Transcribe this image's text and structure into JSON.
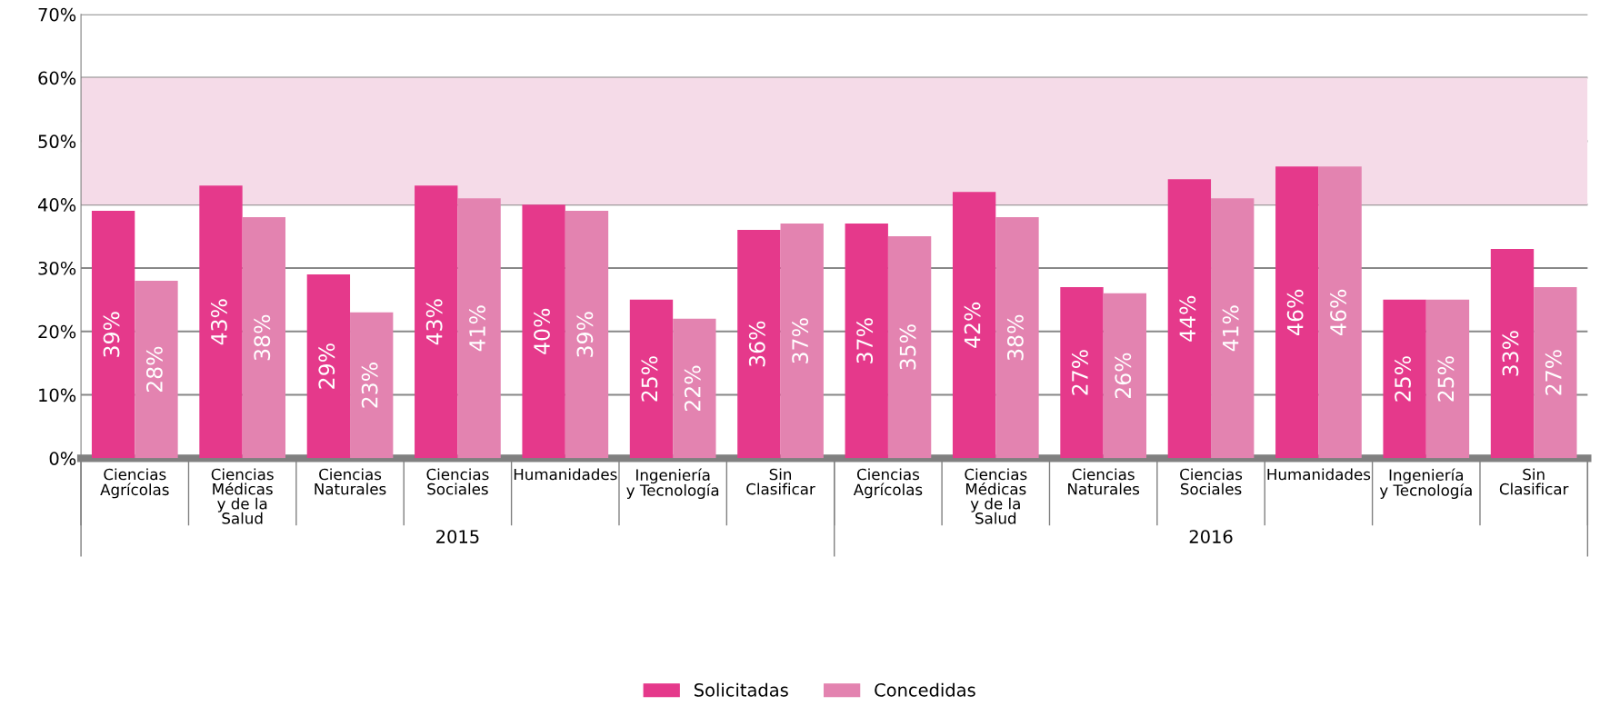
{
  "chart_data": {
    "type": "bar",
    "categories": [
      "Ciencias\nAgrícolas",
      "Ciencias\nMédicas\ny de la\nSalud",
      "Ciencias\nNaturales",
      "Ciencias\nSociales",
      "Humanidades",
      "Ingeniería\ny Tecnología",
      "Sin\nClasificar",
      "Ciencias\nAgrícolas",
      "Ciencias\nMédicas\ny de la\nSalud",
      "Ciencias\nNaturales",
      "Ciencias\nSociales",
      "Humanidades",
      "Ingeniería\ny Tecnología",
      "Sin\nClasificar"
    ],
    "series": [
      {
        "name": "Solicitadas",
        "color": "#e5398b",
        "values": [
          39,
          43,
          29,
          43,
          40,
          25,
          36,
          37,
          42,
          27,
          44,
          46,
          25,
          33
        ],
        "value_labels": [
          "39%",
          "43%",
          "29%",
          "43%",
          "40%",
          "25%",
          "36%",
          "37%",
          "42%",
          "27%",
          "44%",
          "46%",
          "25%",
          "33%"
        ]
      },
      {
        "name": "Concedidas",
        "color": "#e383b0",
        "values": [
          28,
          38,
          23,
          41,
          39,
          22,
          37,
          35,
          38,
          26,
          41,
          46,
          25,
          27
        ],
        "value_labels": [
          "28%",
          "38%",
          "23%",
          "41%",
          "39%",
          "22%",
          "37%",
          "35%",
          "38%",
          "26%",
          "41%",
          "46%",
          "25%",
          "27%"
        ]
      }
    ],
    "annotations": [
      "2015",
      "2016"
    ],
    "ylim": [
      0,
      70
    ],
    "yticks": [
      {
        "value": 0,
        "label": "0%"
      },
      {
        "value": 10,
        "label": "10%"
      },
      {
        "value": 20,
        "label": "20%"
      },
      {
        "value": 30,
        "label": "30%"
      },
      {
        "value": 40,
        "label": "40%"
      },
      {
        "value": 50,
        "label": "50%"
      },
      {
        "value": 60,
        "label": "60%"
      },
      {
        "value": 70,
        "label": "70%"
      }
    ],
    "bands": [
      {
        "axis": "y",
        "from": 40,
        "to": 60,
        "color": "#f5dbe8"
      }
    ],
    "grid": "y",
    "legend": "bottom"
  }
}
